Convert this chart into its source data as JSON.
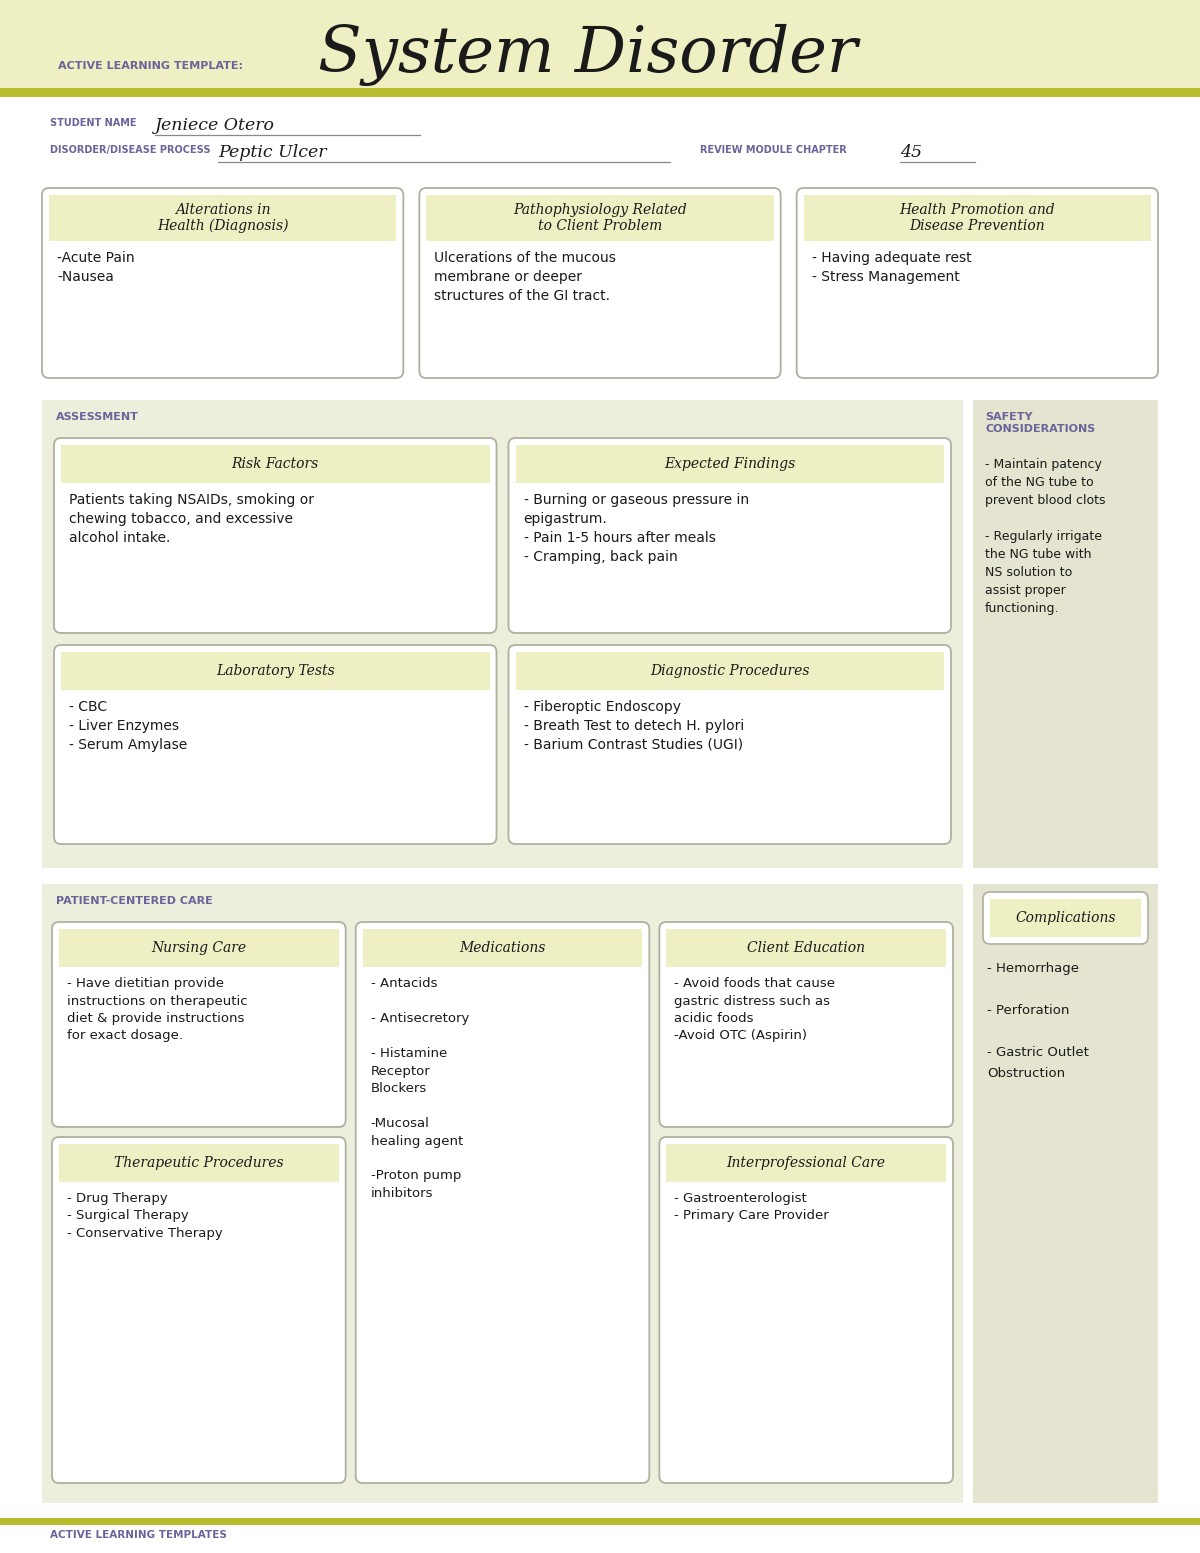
{
  "bg_header": "#eef0c4",
  "bg_white": "#ffffff",
  "bg_box_header": "#eef0c4",
  "bg_section": "#eeeedd",
  "bg_safety": "#e4e4d0",
  "border_color": "#b0b0a0",
  "title_small": "ACTIVE LEARNING TEMPLATE:",
  "title_large": "System Disorder",
  "accent_color": "#b8bb2c",
  "purple_color": "#6b639a",
  "dark_text": "#1a1a1a",
  "student_label": "STUDENT NAME",
  "student_name": "Jeniece Otero",
  "disorder_label": "DISORDER/DISEASE PROCESS",
  "disorder_name": "Peptic Ulcer",
  "chapter_label": "REVIEW MODULE CHAPTER",
  "chapter_num": "45",
  "box1_title": "Alterations in\nHealth (Diagnosis)",
  "box1_body": "-Acute Pain\n-Nausea",
  "box2_title": "Pathophysiology Related\nto Client Problem",
  "box2_body": "Ulcerations of the mucous\nmembrane or deeper\nstructures of the GI tract.",
  "box3_title": "Health Promotion and\nDisease Prevention",
  "box3_body": "- Having adequate rest\n- Stress Management",
  "section1_label": "ASSESSMENT",
  "section2_label": "SAFETY\nCONSIDERATIONS",
  "rf_title": "Risk Factors",
  "rf_body": "Patients taking NSAIDs, smoking or\nchewing tobacco, and excessive\nalcohol intake.",
  "ef_title": "Expected Findings",
  "ef_body": "- Burning or gaseous pressure in\nepigastrum.\n- Pain 1-5 hours after meals\n- Cramping, back pain",
  "lt_title": "Laboratory Tests",
  "lt_body": "- CBC\n- Liver Enzymes\n- Serum Amylase",
  "dp_title": "Diagnostic Procedures",
  "dp_body": "- Fiberoptic Endoscopy\n- Breath Test to detech H. pylori\n- Barium Contrast Studies (UGI)",
  "safety_body": "- Maintain patency\nof the NG tube to\nprevent blood clots\n\n- Regularly irrigate\nthe NG tube with\nNS solution to\nassist proper\nfunctioning.",
  "section3_label": "PATIENT-CENTERED CARE",
  "complications_title": "Complications",
  "complications_body": "- Hemorrhage\n\n- Perforation\n\n- Gastric Outlet\nObstruction",
  "nc_title": "Nursing Care",
  "nc_body": "- Have dietitian provide\ninstructions on therapeutic\ndiet & provide instructions\nfor exact dosage.",
  "med_title": "Medications",
  "med_body": "- Antacids\n\n- Antisecretory\n\n- Histamine\nReceptor\nBlockers\n\n-Mucosal\nhealing agent\n\n-Proton pump\ninhibitors",
  "ce_title": "Client Education",
  "ce_body": "- Avoid foods that cause\ngastric distress such as\nacidic foods\n-Avoid OTC (Aspirin)",
  "tp_title": "Therapeutic Procedures",
  "tp_body": "- Drug Therapy\n- Surgical Therapy\n- Conservative Therapy",
  "ic_title": "Interprofessional Care",
  "ic_body": "- Gastroenterologist\n- Primary Care Provider",
  "footer_text": "ACTIVE LEARNING TEMPLATES"
}
